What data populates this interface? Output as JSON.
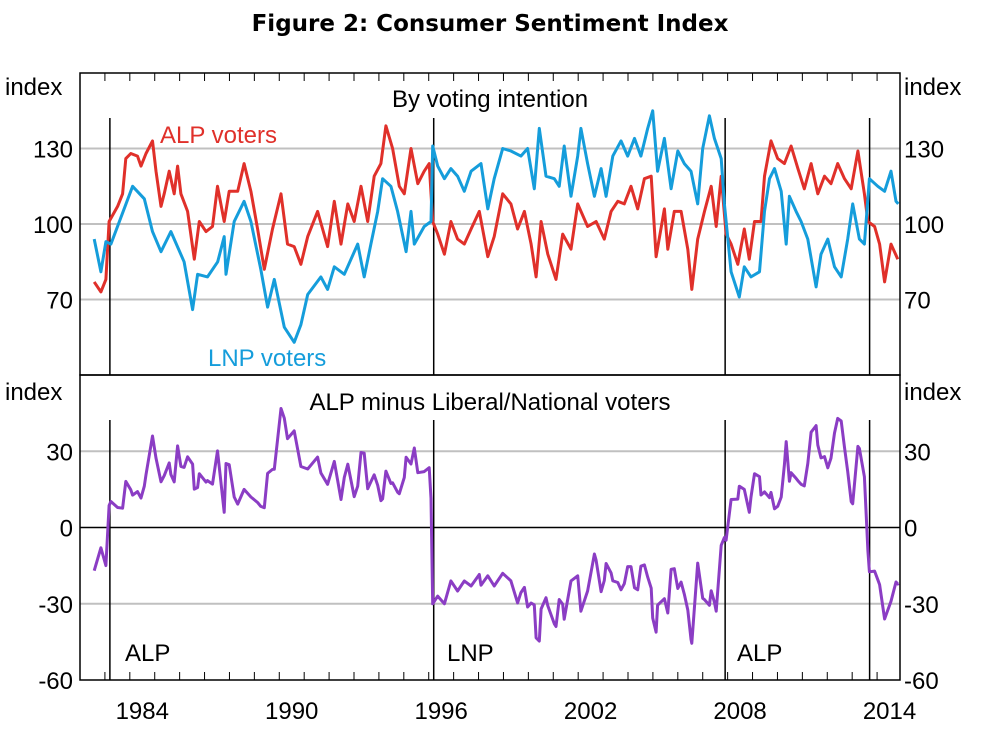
{
  "chart_data": [
    {
      "type": "line",
      "figure_title": "Figure 2: Consumer Sentiment Index",
      "title": "By voting intention",
      "ylabel_left": "index",
      "ylabel_right": "index",
      "ylim": [
        40,
        160
      ],
      "yticks": [
        70,
        100,
        130
      ],
      "xlim": [
        1982.0,
        2014.92
      ],
      "grid": true,
      "series": [
        {
          "name": "ALP voters",
          "color": "#e0302a",
          "points": [
            [
              1982.57,
              77
            ],
            [
              1982.84,
              73
            ],
            [
              1983.04,
              78
            ],
            [
              1983.17,
              101
            ],
            [
              1983.51,
              107
            ],
            [
              1983.71,
              112
            ],
            [
              1983.84,
              126
            ],
            [
              1984.04,
              128
            ],
            [
              1984.31,
              127
            ],
            [
              1984.45,
              123
            ],
            [
              1984.65,
              128
            ],
            [
              1984.91,
              133
            ],
            [
              1985.05,
              121
            ],
            [
              1985.25,
              107
            ],
            [
              1985.38,
              112
            ],
            [
              1985.58,
              121
            ],
            [
              1985.78,
              112
            ],
            [
              1985.92,
              123
            ],
            [
              1986.05,
              112
            ],
            [
              1986.32,
              105
            ],
            [
              1986.59,
              86
            ],
            [
              1986.79,
              101
            ],
            [
              1987.06,
              97
            ],
            [
              1987.32,
              99
            ],
            [
              1987.52,
              115
            ],
            [
              1987.79,
              101
            ],
            [
              1987.99,
              113
            ],
            [
              1988.33,
              113
            ],
            [
              1988.59,
              124
            ],
            [
              1988.86,
              113
            ],
            [
              1989.13,
              98
            ],
            [
              1989.4,
              82
            ],
            [
              1989.73,
              98
            ],
            [
              1990.07,
              112
            ],
            [
              1990.33,
              92
            ],
            [
              1990.6,
              91
            ],
            [
              1990.87,
              84
            ],
            [
              1991.14,
              95
            ],
            [
              1991.54,
              105
            ],
            [
              1991.94,
              91
            ],
            [
              1992.21,
              109
            ],
            [
              1992.48,
              92
            ],
            [
              1992.75,
              108
            ],
            [
              1993.01,
              101
            ],
            [
              1993.28,
              115
            ],
            [
              1993.55,
              101
            ],
            [
              1993.81,
              119
            ],
            [
              1994.08,
              124
            ],
            [
              1994.28,
              139
            ],
            [
              1994.55,
              130
            ],
            [
              1994.82,
              115
            ],
            [
              1995.02,
              112
            ],
            [
              1995.29,
              130
            ],
            [
              1995.56,
              116
            ],
            [
              1995.82,
              121
            ],
            [
              1996.02,
              124
            ],
            [
              1996.16,
              101
            ],
            [
              1996.36,
              96
            ],
            [
              1996.63,
              88
            ],
            [
              1996.89,
              101
            ],
            [
              1997.16,
              94
            ],
            [
              1997.43,
              92
            ],
            [
              1997.7,
              98
            ],
            [
              1998.03,
              105
            ],
            [
              1998.37,
              87
            ],
            [
              1998.63,
              95
            ],
            [
              1998.97,
              112
            ],
            [
              1999.3,
              108
            ],
            [
              1999.57,
              98
            ],
            [
              1999.84,
              105
            ],
            [
              2000.11,
              92
            ],
            [
              2000.31,
              79
            ],
            [
              2000.51,
              101
            ],
            [
              2000.78,
              88
            ],
            [
              2001.11,
              78
            ],
            [
              2001.38,
              96
            ],
            [
              2001.71,
              90
            ],
            [
              2001.98,
              108
            ],
            [
              2002.38,
              99
            ],
            [
              2002.72,
              101
            ],
            [
              2003.05,
              94
            ],
            [
              2003.32,
              105
            ],
            [
              2003.59,
              109
            ],
            [
              2003.85,
              108
            ],
            [
              2004.12,
              115
            ],
            [
              2004.39,
              106
            ],
            [
              2004.66,
              118
            ],
            [
              2004.93,
              119
            ],
            [
              2005.13,
              87
            ],
            [
              2005.46,
              106
            ],
            [
              2005.6,
              90
            ],
            [
              2005.86,
              105
            ],
            [
              2006.13,
              105
            ],
            [
              2006.4,
              90
            ],
            [
              2006.56,
              74
            ],
            [
              2006.8,
              94
            ],
            [
              2007.07,
              105
            ],
            [
              2007.34,
              115
            ],
            [
              2007.54,
              99
            ],
            [
              2007.74,
              119
            ],
            [
              2007.94,
              96
            ],
            [
              2008.14,
              92
            ],
            [
              2008.41,
              84
            ],
            [
              2008.67,
              98
            ],
            [
              2008.87,
              86
            ],
            [
              2009.08,
              101
            ],
            [
              2009.34,
              101
            ],
            [
              2009.48,
              119
            ],
            [
              2009.74,
              133
            ],
            [
              2010.01,
              126
            ],
            [
              2010.28,
              124
            ],
            [
              2010.55,
              131
            ],
            [
              2010.82,
              122
            ],
            [
              2011.08,
              114
            ],
            [
              2011.35,
              124
            ],
            [
              2011.62,
              112
            ],
            [
              2011.89,
              119
            ],
            [
              2012.15,
              116
            ],
            [
              2012.42,
              124
            ],
            [
              2012.69,
              118
            ],
            [
              2012.96,
              114
            ],
            [
              2013.23,
              129
            ],
            [
              2013.49,
              112
            ],
            [
              2013.63,
              101
            ],
            [
              2013.9,
              99
            ],
            [
              2014.1,
              92
            ],
            [
              2014.3,
              77
            ],
            [
              2014.56,
              92
            ],
            [
              2014.83,
              86
            ]
          ]
        },
        {
          "name": "LNP voters",
          "color": "#159ddb",
          "points": [
            [
              1982.57,
              94
            ],
            [
              1982.84,
              81
            ],
            [
              1983.04,
              93
            ],
            [
              1983.24,
              92
            ],
            [
              1984.11,
              115
            ],
            [
              1984.58,
              110
            ],
            [
              1984.91,
              97
            ],
            [
              1985.25,
              89
            ],
            [
              1985.65,
              97
            ],
            [
              1986.18,
              85
            ],
            [
              1986.52,
              66
            ],
            [
              1986.72,
              80
            ],
            [
              1987.12,
              79
            ],
            [
              1987.53,
              85
            ],
            [
              1987.79,
              95
            ],
            [
              1987.86,
              80
            ],
            [
              1988.19,
              101
            ],
            [
              1988.59,
              109
            ],
            [
              1988.86,
              101
            ],
            [
              1989.26,
              82
            ],
            [
              1989.53,
              67
            ],
            [
              1989.8,
              78
            ],
            [
              1990.2,
              59
            ],
            [
              1990.6,
              53
            ],
            [
              1990.87,
              60
            ],
            [
              1991.14,
              72
            ],
            [
              1991.67,
              79
            ],
            [
              1991.94,
              74
            ],
            [
              1992.21,
              83
            ],
            [
              1992.61,
              80
            ],
            [
              1993.15,
              92
            ],
            [
              1993.41,
              79
            ],
            [
              1993.68,
              92
            ],
            [
              1993.95,
              105
            ],
            [
              1994.15,
              118
            ],
            [
              1994.48,
              115
            ],
            [
              1994.75,
              105
            ],
            [
              1995.09,
              89
            ],
            [
              1995.29,
              105
            ],
            [
              1995.42,
              92
            ],
            [
              1995.82,
              99
            ],
            [
              1996.09,
              101
            ],
            [
              1996.16,
              131
            ],
            [
              1996.36,
              123
            ],
            [
              1996.63,
              118
            ],
            [
              1996.89,
              122
            ],
            [
              1997.16,
              119
            ],
            [
              1997.43,
              113
            ],
            [
              1997.7,
              121
            ],
            [
              1998.1,
              124
            ],
            [
              1998.37,
              106
            ],
            [
              1998.63,
              118
            ],
            [
              1998.97,
              130
            ],
            [
              1999.3,
              129
            ],
            [
              1999.7,
              127
            ],
            [
              1999.97,
              130
            ],
            [
              2000.24,
              114
            ],
            [
              2000.44,
              138
            ],
            [
              2000.71,
              119
            ],
            [
              2001.04,
              118
            ],
            [
              2001.24,
              115
            ],
            [
              2001.44,
              131
            ],
            [
              2001.71,
              111
            ],
            [
              2001.98,
              127
            ],
            [
              2002.11,
              138
            ],
            [
              2002.38,
              124
            ],
            [
              2002.65,
              111
            ],
            [
              2002.92,
              122
            ],
            [
              2003.12,
              111
            ],
            [
              2003.39,
              127
            ],
            [
              2003.72,
              133
            ],
            [
              2003.99,
              127
            ],
            [
              2004.26,
              134
            ],
            [
              2004.52,
              127
            ],
            [
              2004.79,
              138
            ],
            [
              2004.99,
              145
            ],
            [
              2005.19,
              121
            ],
            [
              2005.46,
              134
            ],
            [
              2005.73,
              114
            ],
            [
              2006.0,
              129
            ],
            [
              2006.26,
              124
            ],
            [
              2006.53,
              121
            ],
            [
              2006.8,
              108
            ],
            [
              2007.0,
              130
            ],
            [
              2007.27,
              143
            ],
            [
              2007.47,
              134
            ],
            [
              2007.74,
              126
            ],
            [
              2007.87,
              108
            ],
            [
              2008.14,
              81
            ],
            [
              2008.47,
              71
            ],
            [
              2008.67,
              83
            ],
            [
              2008.94,
              79
            ],
            [
              2009.28,
              81
            ],
            [
              2009.48,
              105
            ],
            [
              2009.68,
              118
            ],
            [
              2009.88,
              122
            ],
            [
              2010.15,
              113
            ],
            [
              2010.35,
              92
            ],
            [
              2010.48,
              111
            ],
            [
              2010.75,
              105
            ],
            [
              2010.95,
              101
            ],
            [
              2011.22,
              94
            ],
            [
              2011.55,
              75
            ],
            [
              2011.75,
              88
            ],
            [
              2012.02,
              94
            ],
            [
              2012.29,
              83
            ],
            [
              2012.56,
              79
            ],
            [
              2012.82,
              94
            ],
            [
              2013.02,
              108
            ],
            [
              2013.29,
              94
            ],
            [
              2013.49,
              92
            ],
            [
              2013.69,
              118
            ],
            [
              2014.03,
              115
            ],
            [
              2014.3,
              113
            ],
            [
              2014.56,
              121
            ],
            [
              2014.76,
              109
            ],
            [
              2014.85,
              108
            ]
          ]
        }
      ],
      "annotations": [
        "ALP voters",
        "LNP voters"
      ]
    },
    {
      "type": "line",
      "title": "ALP minus Liberal/National voters",
      "ylabel_left": "index",
      "ylabel_right": "index",
      "ylim": [
        -60,
        60
      ],
      "yticks": [
        -60,
        -30,
        0,
        30
      ],
      "xlim": [
        1982.0,
        2014.92
      ],
      "xticks": [
        1984,
        1990,
        1996,
        2002,
        2008,
        2014
      ],
      "grid": true,
      "series": [
        {
          "name": "ALP minus Liberal/National voters",
          "color": "#8b3dc4",
          "derived_from": [
            "ALP voters",
            "LNP voters"
          ]
        }
      ]
    }
  ],
  "government_periods": [
    {
      "label": "ALP",
      "start": 1983.2
    },
    {
      "label": "LNP",
      "start": 1996.2
    },
    {
      "label": "ALP",
      "start": 2007.9
    },
    {
      "start": 2013.7
    }
  ]
}
